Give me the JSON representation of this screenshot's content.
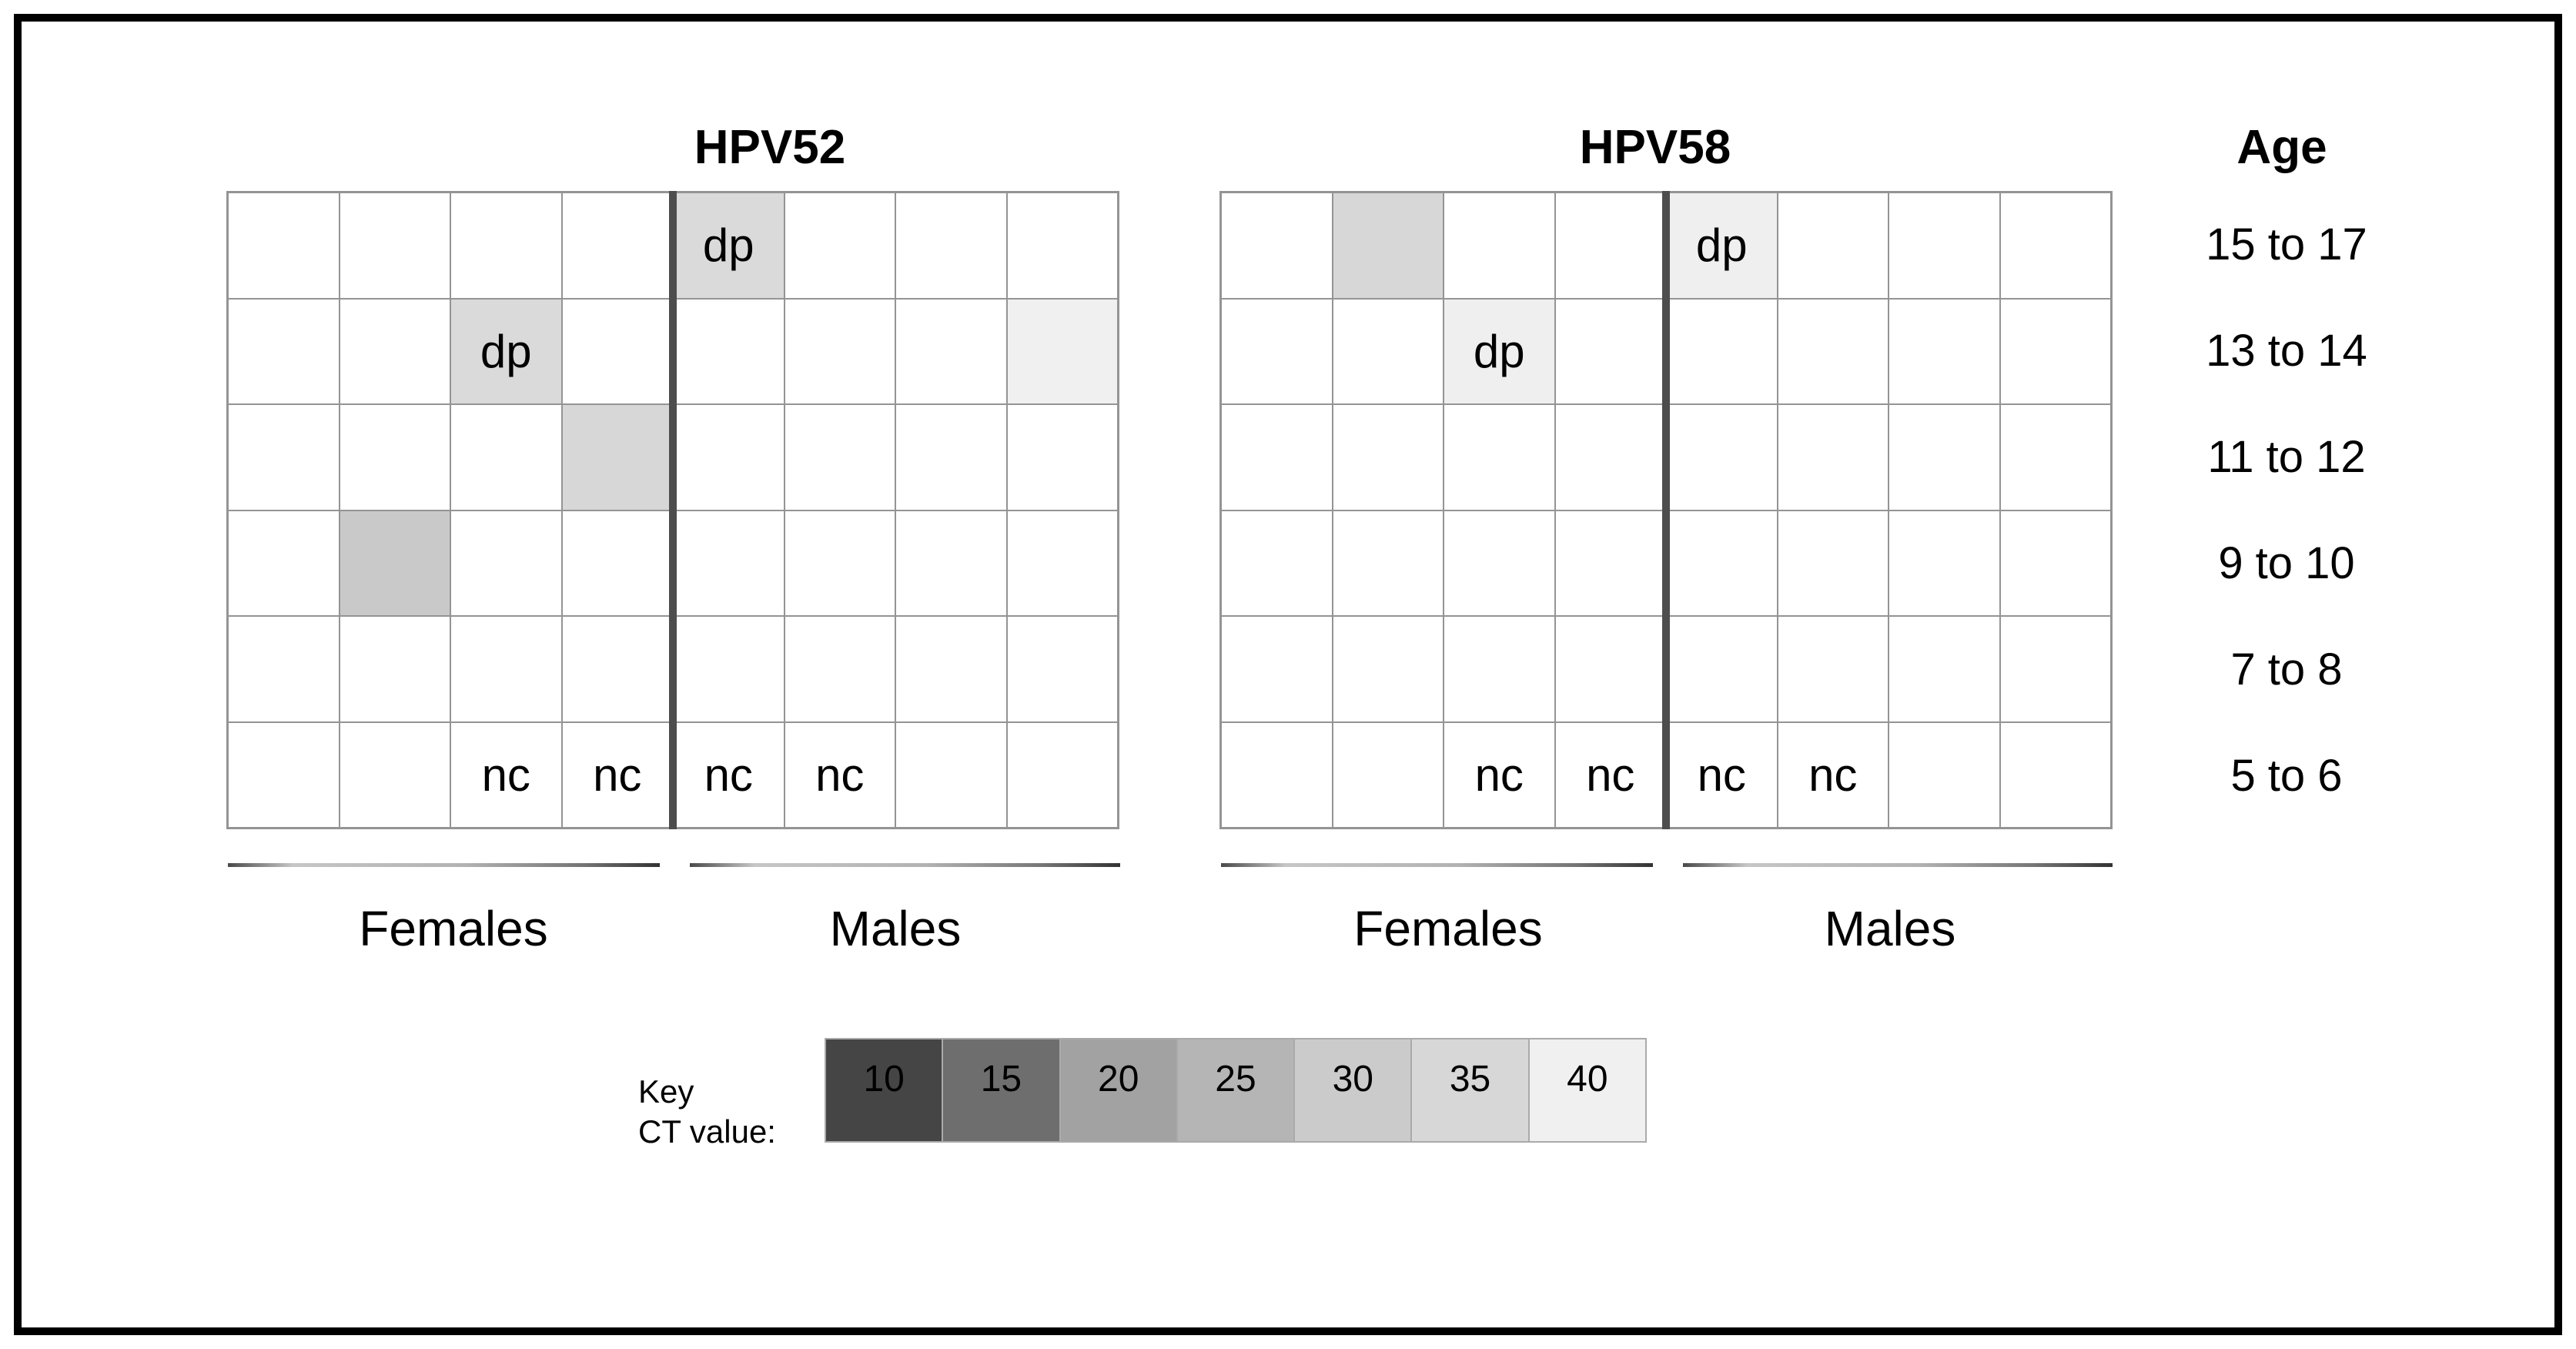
{
  "figure": {
    "age_header": "Age",
    "age_groups": [
      "15 to 17",
      "13 to 14",
      "11 to 12",
      "9 to 10",
      "7 to 8",
      "5 to 6"
    ],
    "sex_groups": [
      "Females",
      "Males"
    ],
    "key": {
      "label_line1": "Key",
      "label_line2": "CT value:",
      "values": [
        "10",
        "15",
        "20",
        "25",
        "30",
        "35",
        "40"
      ],
      "colors": [
        "#454545",
        "#6e6e6e",
        "#a2a2a2",
        "#b5b5b5",
        "#cbcbcb",
        "#d7d7d7",
        "#f0f0f0"
      ]
    }
  },
  "chart_data": {
    "type": "heatmap",
    "row_labels": [
      "15 to 17",
      "13 to 14",
      "11 to 12",
      "9 to 10",
      "7 to 8",
      "5 to 6"
    ],
    "n_cols": 8,
    "col_groups": [
      {
        "label": "Females",
        "cols": [
          0,
          1,
          2,
          3
        ]
      },
      {
        "label": "Males",
        "cols": [
          4,
          5,
          6,
          7
        ]
      }
    ],
    "legend_title": "Key CT value:",
    "legend_values": [
      10,
      15,
      20,
      25,
      30,
      35,
      40
    ],
    "panels": [
      {
        "title": "HPV52",
        "cells": [
          {
            "row": 0,
            "col": 4,
            "label": "dp",
            "color": "#dadada",
            "ct_approx": 35
          },
          {
            "row": 1,
            "col": 2,
            "label": "dp",
            "color": "#dadada",
            "ct_approx": 35
          },
          {
            "row": 1,
            "col": 7,
            "label": "",
            "color": "#f0f0f0",
            "ct_approx": 40
          },
          {
            "row": 2,
            "col": 3,
            "label": "",
            "color": "#d7d7d7",
            "ct_approx": 35
          },
          {
            "row": 3,
            "col": 1,
            "label": "",
            "color": "#c9c9c9",
            "ct_approx": 30
          },
          {
            "row": 5,
            "col": 2,
            "label": "nc"
          },
          {
            "row": 5,
            "col": 3,
            "label": "nc"
          },
          {
            "row": 5,
            "col": 4,
            "label": "nc"
          },
          {
            "row": 5,
            "col": 5,
            "label": "nc"
          }
        ]
      },
      {
        "title": "HPV58",
        "cells": [
          {
            "row": 0,
            "col": 1,
            "label": "",
            "color": "#d7d7d7",
            "ct_approx": 35
          },
          {
            "row": 0,
            "col": 4,
            "label": "dp",
            "color": "#efefef",
            "ct_approx": 40
          },
          {
            "row": 1,
            "col": 2,
            "label": "dp",
            "color": "#efefef",
            "ct_approx": 40
          },
          {
            "row": 5,
            "col": 2,
            "label": "nc"
          },
          {
            "row": 5,
            "col": 3,
            "label": "nc"
          },
          {
            "row": 5,
            "col": 4,
            "label": "nc"
          },
          {
            "row": 5,
            "col": 5,
            "label": "nc"
          }
        ]
      }
    ]
  }
}
